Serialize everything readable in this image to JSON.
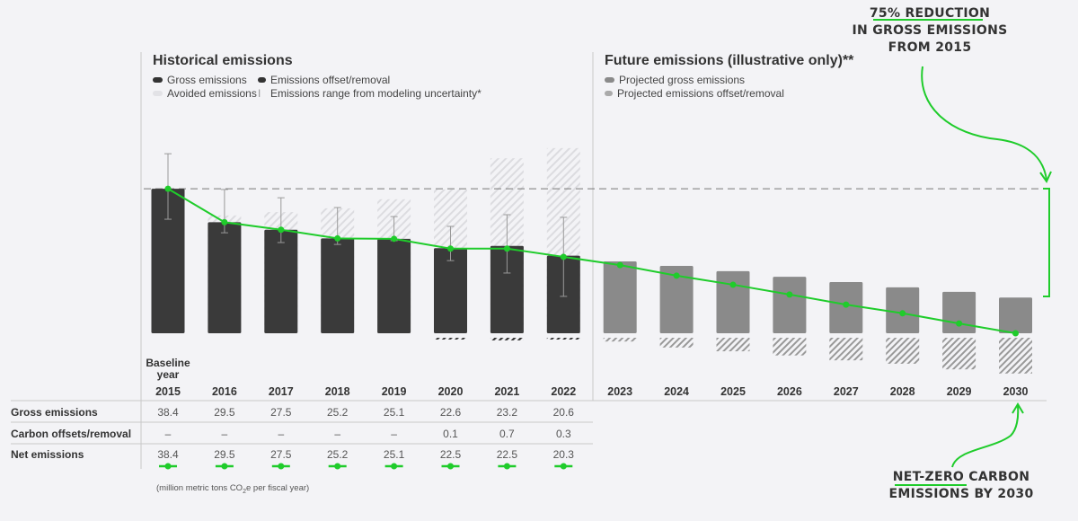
{
  "colors": {
    "gross": "#3a3a3a",
    "projected": "#8a8a8a",
    "net_line": "#1fcc2b",
    "avoided": "#d8d8dc",
    "grid": "#bbbbbb"
  },
  "historical": {
    "title": "Historical emissions",
    "legend": [
      "Gross emissions",
      "Emissions offset/removal",
      "Avoided emissions",
      "Emissions range from modeling uncertainty*"
    ]
  },
  "future": {
    "title": "Future emissions (illustrative only)**",
    "legend": [
      "Projected gross emissions",
      "Projected emissions offset/removal"
    ]
  },
  "baseline_label": [
    "Baseline",
    "year"
  ],
  "table": {
    "rows": [
      "Gross emissions",
      "Carbon offsets/removal",
      "Net emissions"
    ],
    "gross": [
      "38.4",
      "29.5",
      "27.5",
      "25.2",
      "25.1",
      "22.6",
      "23.2",
      "20.6"
    ],
    "offsets": [
      "–",
      "–",
      "–",
      "–",
      "–",
      "0.1",
      "0.7",
      "0.3"
    ],
    "net": [
      "38.4",
      "29.5",
      "27.5",
      "25.2",
      "25.1",
      "22.5",
      "22.5",
      "20.3"
    ]
  },
  "unit_note_parts": [
    "(million metric tons CO",
    "2",
    "e per fiscal year)"
  ],
  "annotations": {
    "top": [
      "75% REDUCTION",
      "IN GROSS EMISSIONS",
      "FROM 2015"
    ],
    "bottom": [
      "NET-ZERO CARBON",
      "EMISSIONS BY 2030"
    ]
  },
  "chart_data": {
    "type": "bar",
    "categories": [
      "2015",
      "2016",
      "2017",
      "2018",
      "2019",
      "2020",
      "2021",
      "2022",
      "2023",
      "2024",
      "2025",
      "2026",
      "2027",
      "2028",
      "2029",
      "2030"
    ],
    "series": [
      {
        "name": "Gross emissions",
        "values": [
          38.4,
          29.5,
          27.5,
          25.2,
          25.1,
          22.6,
          23.2,
          20.6,
          null,
          null,
          null,
          null,
          null,
          null,
          null,
          null
        ]
      },
      {
        "name": "Emissions offset/removal",
        "values": [
          0,
          0,
          0,
          0,
          0,
          0.1,
          0.7,
          0.3,
          null,
          null,
          null,
          null,
          null,
          null,
          null,
          null
        ]
      },
      {
        "name": "Avoided emissions",
        "values_total_top": [
          null,
          31.3,
          32.2,
          33.2,
          35.6,
          38.2,
          46.5,
          49.2,
          null,
          null,
          null,
          null,
          null,
          null,
          null,
          null
        ]
      },
      {
        "name": "Emissions range from modeling uncertainty*",
        "range": [
          [
            30.3,
            47.7
          ],
          [
            26.7,
            38.2
          ],
          [
            24.1,
            36.0
          ],
          [
            23.6,
            33.4
          ],
          [
            24.6,
            31.0
          ],
          [
            19.3,
            28.4
          ],
          [
            16.0,
            31.5
          ],
          [
            9.8,
            30.8
          ],
          null,
          null,
          null,
          null,
          null,
          null,
          null,
          null
        ]
      },
      {
        "name": "Projected gross emissions",
        "values": [
          null,
          null,
          null,
          null,
          null,
          null,
          null,
          null,
          19.1,
          17.9,
          16.5,
          15.0,
          13.6,
          12.2,
          11.0,
          9.5
        ]
      },
      {
        "name": "Projected emissions offset/removal",
        "values": [
          null,
          null,
          null,
          null,
          null,
          null,
          null,
          null,
          1.0,
          2.6,
          3.6,
          4.7,
          6.0,
          6.9,
          8.4,
          9.5
        ]
      },
      {
        "name": "Net emissions",
        "values": [
          38.4,
          29.5,
          27.5,
          25.2,
          25.1,
          22.5,
          22.5,
          20.3,
          18.1,
          15.3,
          12.9,
          10.3,
          7.6,
          5.3,
          2.6,
          0
        ]
      }
    ],
    "baseline_reference": 38.4,
    "ylim": [
      -10,
      50
    ],
    "grid": false
  }
}
